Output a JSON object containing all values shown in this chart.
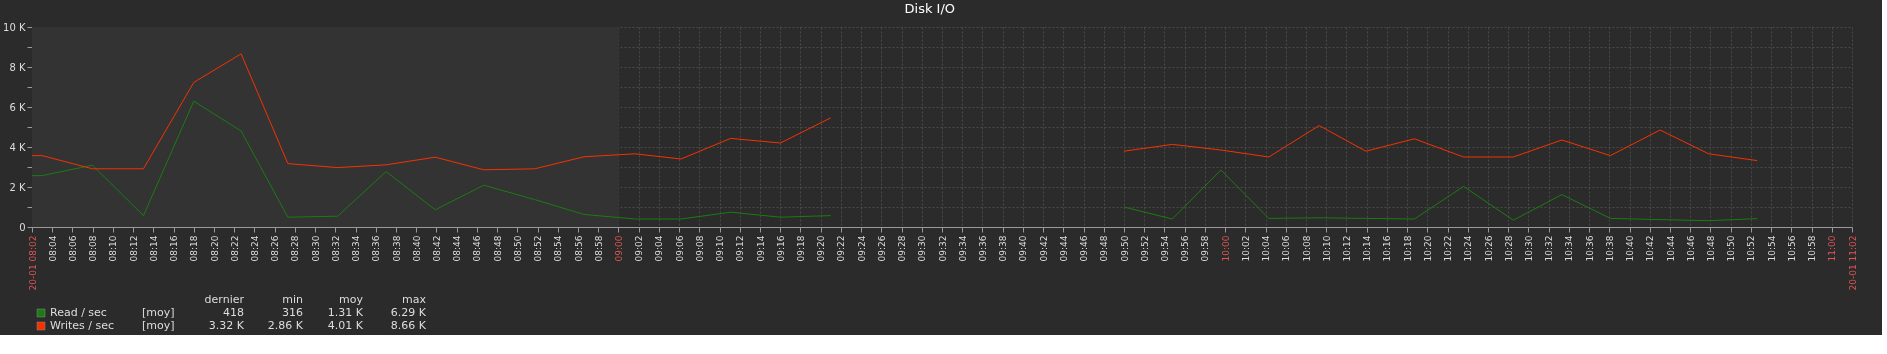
{
  "chart_data": {
    "type": "line",
    "title": "Disk I/O",
    "x": [
      8.0333,
      8.05,
      8.133,
      8.217,
      8.3,
      8.378,
      8.455,
      8.537,
      8.617,
      8.698,
      8.778,
      8.862,
      8.943,
      9.027,
      9.103,
      9.185,
      9.267,
      9.35,
      9.6,
      9.833,
      9.913,
      9.993,
      10.072,
      10.155,
      10.232,
      10.312,
      10.393,
      10.475,
      10.555,
      10.635,
      10.717,
      10.797,
      10.877
    ],
    "series": [
      {
        "name": "Read / sec",
        "color": "#1a7c11",
        "values": [
          2570,
          2570,
          3090,
          570,
          6290,
          4800,
          490,
          540,
          2770,
          860,
          2090,
          1370,
          630,
          400,
          400,
          740,
          490,
          570,
          null,
          1000,
          400,
          2850,
          430,
          460,
          430,
          400,
          2030,
          340,
          1620,
          430,
          370,
          316,
          418
        ]
      },
      {
        "name": "Writes / sec",
        "color": "#f63100",
        "values": [
          3570,
          3570,
          2910,
          2910,
          7230,
          8660,
          3170,
          2970,
          3110,
          3490,
          2860,
          2910,
          3510,
          3660,
          3400,
          4430,
          4200,
          5460,
          null,
          3790,
          4130,
          3850,
          3500,
          5070,
          3790,
          4410,
          3500,
          3500,
          4350,
          3570,
          4850,
          3660,
          3320
        ]
      }
    ],
    "xlim": [
      8.0333,
      11.0333
    ],
    "xticks": [
      {
        "value": 8.0333,
        "label": "20-01 08:02"
      },
      {
        "value": 8.0667,
        "label": "08:04"
      },
      {
        "value": 8.1,
        "label": "08:06"
      },
      {
        "value": 8.1333,
        "label": "08:08"
      },
      {
        "value": 8.1667,
        "label": "08:10"
      },
      {
        "value": 8.2,
        "label": "08:12"
      },
      {
        "value": 8.2333,
        "label": "08:14"
      },
      {
        "value": 8.2667,
        "label": "08:16"
      },
      {
        "value": 8.3,
        "label": "08:18"
      },
      {
        "value": 8.3333,
        "label": "08:20"
      },
      {
        "value": 8.3667,
        "label": "08:22"
      },
      {
        "value": 8.4,
        "label": "08:24"
      },
      {
        "value": 8.4333,
        "label": "08:26"
      },
      {
        "value": 8.4667,
        "label": "08:28"
      },
      {
        "value": 8.5,
        "label": "08:30"
      },
      {
        "value": 8.5333,
        "label": "08:32"
      },
      {
        "value": 8.5667,
        "label": "08:34"
      },
      {
        "value": 8.6,
        "label": "08:36"
      },
      {
        "value": 8.6333,
        "label": "08:38"
      },
      {
        "value": 8.6667,
        "label": "08:40"
      },
      {
        "value": 8.7,
        "label": "08:42"
      },
      {
        "value": 8.7333,
        "label": "08:44"
      },
      {
        "value": 8.7667,
        "label": "08:46"
      },
      {
        "value": 8.8,
        "label": "08:48"
      },
      {
        "value": 8.8333,
        "label": "08:50"
      },
      {
        "value": 8.8667,
        "label": "08:52"
      },
      {
        "value": 8.9,
        "label": "08:54"
      },
      {
        "value": 8.9333,
        "label": "08:56"
      },
      {
        "value": 8.9667,
        "label": "08:58"
      },
      {
        "value": 9,
        "label": "09:00"
      },
      {
        "value": 9.0333,
        "label": "09:02"
      },
      {
        "value": 9.0667,
        "label": "09:04"
      },
      {
        "value": 9.1,
        "label": "09:06"
      },
      {
        "value": 9.1333,
        "label": "09:08"
      },
      {
        "value": 9.1667,
        "label": "09:10"
      },
      {
        "value": 9.2,
        "label": "09:12"
      },
      {
        "value": 9.2333,
        "label": "09:14"
      },
      {
        "value": 9.2667,
        "label": "09:16"
      },
      {
        "value": 9.3,
        "label": "09:18"
      },
      {
        "value": 9.3333,
        "label": "09:20"
      },
      {
        "value": 9.3667,
        "label": "09:22"
      },
      {
        "value": 9.4,
        "label": "09:24"
      },
      {
        "value": 9.4333,
        "label": "09:26"
      },
      {
        "value": 9.4667,
        "label": "09:28"
      },
      {
        "value": 9.5,
        "label": "09:30"
      },
      {
        "value": 9.5333,
        "label": "09:32"
      },
      {
        "value": 9.5667,
        "label": "09:34"
      },
      {
        "value": 9.6,
        "label": "09:36"
      },
      {
        "value": 9.6333,
        "label": "09:38"
      },
      {
        "value": 9.6667,
        "label": "09:40"
      },
      {
        "value": 9.7,
        "label": "09:42"
      },
      {
        "value": 9.7333,
        "label": "09:44"
      },
      {
        "value": 9.7667,
        "label": "09:46"
      },
      {
        "value": 9.8,
        "label": "09:48"
      },
      {
        "value": 9.8333,
        "label": "09:50"
      },
      {
        "value": 9.8667,
        "label": "09:52"
      },
      {
        "value": 9.9,
        "label": "09:54"
      },
      {
        "value": 9.9333,
        "label": "09:56"
      },
      {
        "value": 9.9667,
        "label": "09:58"
      },
      {
        "value": 10,
        "label": "10:00"
      },
      {
        "value": 10.0333,
        "label": "10:02"
      },
      {
        "value": 10.0667,
        "label": "10:04"
      },
      {
        "value": 10.1,
        "label": "10:06"
      },
      {
        "value": 10.1333,
        "label": "10:08"
      },
      {
        "value": 10.1667,
        "label": "10:10"
      },
      {
        "value": 10.2,
        "label": "10:12"
      },
      {
        "value": 10.2333,
        "label": "10:14"
      },
      {
        "value": 10.2667,
        "label": "10:16"
      },
      {
        "value": 10.3,
        "label": "10:18"
      },
      {
        "value": 10.3333,
        "label": "10:20"
      },
      {
        "value": 10.3667,
        "label": "10:22"
      },
      {
        "value": 10.4,
        "label": "10:24"
      },
      {
        "value": 10.4333,
        "label": "10:26"
      },
      {
        "value": 10.4667,
        "label": "10:28"
      },
      {
        "value": 10.5,
        "label": "10:30"
      },
      {
        "value": 10.5333,
        "label": "10:32"
      },
      {
        "value": 10.5667,
        "label": "10:34"
      },
      {
        "value": 10.6,
        "label": "10:36"
      },
      {
        "value": 10.6333,
        "label": "10:38"
      },
      {
        "value": 10.6667,
        "label": "10:40"
      },
      {
        "value": 10.7,
        "label": "10:42"
      },
      {
        "value": 10.7333,
        "label": "10:44"
      },
      {
        "value": 10.7667,
        "label": "10:46"
      },
      {
        "value": 10.8,
        "label": "10:48"
      },
      {
        "value": 10.8333,
        "label": "10:50"
      },
      {
        "value": 10.8667,
        "label": "10:52"
      },
      {
        "value": 10.9,
        "label": "10:54"
      },
      {
        "value": 10.9333,
        "label": "10:56"
      },
      {
        "value": 10.9667,
        "label": "10:58"
      },
      {
        "value": 11,
        "label": "11:00"
      },
      {
        "value": 11.0333,
        "label": "20-01 11:02"
      }
    ],
    "ylim": [
      0,
      10000
    ],
    "yticks": [
      0,
      {
        "value": 1000,
        "label": null
      },
      {
        "value": 2000,
        "label": "2 K"
      },
      {
        "value": 3000,
        "label": null
      },
      {
        "value": 4000,
        "label": "4 K"
      },
      {
        "value": 5000,
        "label": null
      },
      {
        "value": 6000,
        "label": "6 K"
      },
      {
        "value": 7000,
        "label": null
      },
      {
        "value": 8000,
        "label": "8 K"
      },
      {
        "value": 9000,
        "label": null
      },
      {
        "value": 10000,
        "label": "10 K"
      }
    ],
    "bands": [
      {
        "axis": "x",
        "from": 8.0333,
        "to": 9,
        "color": "#333333"
      }
    ],
    "annotations": [
      "dernier",
      "min",
      "moy",
      "max",
      "[moy]",
      "418",
      "316",
      "1.31 K",
      "6.29 K",
      "[moy]",
      "3.32 K",
      "2.86 K",
      "4.01 K",
      "8.66 K"
    ],
    "grid": true,
    "legend": "bottom",
    "marker": "none",
    "line_style": "solid"
  }
}
